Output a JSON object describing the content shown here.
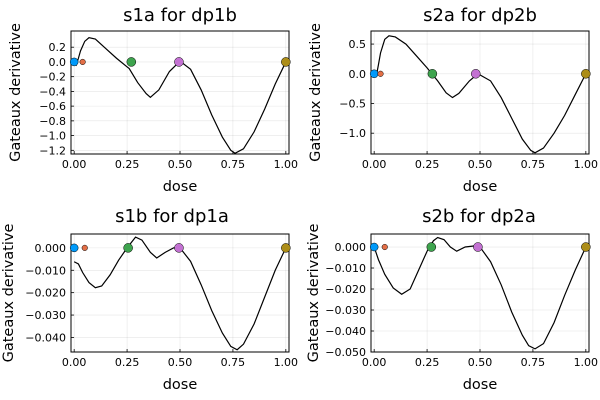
{
  "chart_data": [
    {
      "type": "line",
      "title": "s1a for dp1b",
      "xlabel": "dose",
      "ylabel": "Gateaux derivative",
      "xlim": [
        -0.015,
        1.015
      ],
      "ylim": [
        -1.25,
        0.42
      ],
      "xticks": [
        0.0,
        0.25,
        0.5,
        0.75,
        1.0
      ],
      "xtick_labels": [
        "0.00",
        "0.25",
        "0.50",
        "0.75",
        "1.00"
      ],
      "yticks": [
        0.2,
        0.0,
        -0.2,
        -0.4,
        -0.6,
        -0.8,
        -1.0,
        -1.2
      ],
      "ytick_labels": [
        "0.2",
        "0.0",
        "−0.2",
        "−0.4",
        "−0.6",
        "−0.8",
        "−1.0",
        "−1.2"
      ],
      "grid": true,
      "legend": "none",
      "series": [
        {
          "values": [
            [
              0.0,
              0.0
            ],
            [
              0.01,
              -0.04
            ],
            [
              0.02,
              0.05
            ],
            [
              0.03,
              0.15
            ],
            [
              0.05,
              0.28
            ],
            [
              0.07,
              0.33
            ],
            [
              0.1,
              0.31
            ],
            [
              0.15,
              0.18
            ],
            [
              0.2,
              0.05
            ],
            [
              0.26,
              -0.09
            ],
            [
              0.3,
              -0.28
            ],
            [
              0.34,
              -0.43
            ],
            [
              0.36,
              -0.48
            ],
            [
              0.4,
              -0.38
            ],
            [
              0.45,
              -0.13
            ],
            [
              0.5,
              0.01
            ],
            [
              0.55,
              -0.1
            ],
            [
              0.6,
              -0.38
            ],
            [
              0.65,
              -0.72
            ],
            [
              0.7,
              -1.02
            ],
            [
              0.74,
              -1.2
            ],
            [
              0.76,
              -1.24
            ],
            [
              0.8,
              -1.18
            ],
            [
              0.85,
              -0.95
            ],
            [
              0.9,
              -0.64
            ],
            [
              0.95,
              -0.3
            ],
            [
              1.0,
              0.0
            ]
          ]
        }
      ],
      "points": [
        {
          "x": 0.0,
          "y": 0.0,
          "color": "#009AFA",
          "r": 4
        },
        {
          "x": 0.04,
          "y": 0.0,
          "color": "#E36F47",
          "r": 2.8
        },
        {
          "x": 0.27,
          "y": 0.0,
          "color": "#3EA44E",
          "r": 4.5
        },
        {
          "x": 0.495,
          "y": 0.0,
          "color": "#C371D2",
          "r": 4.5
        },
        {
          "x": 1.0,
          "y": 0.0,
          "color": "#AC8D18",
          "r": 4.5
        }
      ]
    },
    {
      "type": "line",
      "title": "s2a for dp2b",
      "xlabel": "dose",
      "ylabel": "Gateaux derivative",
      "xlim": [
        -0.015,
        1.015
      ],
      "ylim": [
        -1.35,
        0.72
      ],
      "xticks": [
        0.0,
        0.25,
        0.5,
        0.75,
        1.0
      ],
      "xtick_labels": [
        "0.00",
        "0.25",
        "0.50",
        "0.75",
        "1.00"
      ],
      "yticks": [
        0.5,
        0.0,
        -0.5,
        -1.0
      ],
      "ytick_labels": [
        "0.5",
        "0.0",
        "−0.5",
        "−1.0"
      ],
      "grid": true,
      "legend": "none",
      "series": [
        {
          "values": [
            [
              0.0,
              0.0
            ],
            [
              0.01,
              -0.04
            ],
            [
              0.02,
              0.15
            ],
            [
              0.03,
              0.35
            ],
            [
              0.05,
              0.58
            ],
            [
              0.07,
              0.64
            ],
            [
              0.1,
              0.62
            ],
            [
              0.15,
              0.5
            ],
            [
              0.2,
              0.3
            ],
            [
              0.25,
              0.1
            ],
            [
              0.3,
              -0.12
            ],
            [
              0.34,
              -0.32
            ],
            [
              0.37,
              -0.4
            ],
            [
              0.4,
              -0.33
            ],
            [
              0.45,
              -0.12
            ],
            [
              0.49,
              0.0
            ],
            [
              0.55,
              -0.12
            ],
            [
              0.6,
              -0.4
            ],
            [
              0.65,
              -0.75
            ],
            [
              0.7,
              -1.1
            ],
            [
              0.74,
              -1.29
            ],
            [
              0.76,
              -1.33
            ],
            [
              0.8,
              -1.25
            ],
            [
              0.85,
              -1.0
            ],
            [
              0.9,
              -0.7
            ],
            [
              0.95,
              -0.35
            ],
            [
              1.0,
              0.0
            ]
          ]
        }
      ],
      "points": [
        {
          "x": 0.0,
          "y": 0.0,
          "color": "#009AFA",
          "r": 4
        },
        {
          "x": 0.03,
          "y": 0.0,
          "color": "#E36F47",
          "r": 2.8
        },
        {
          "x": 0.275,
          "y": 0.0,
          "color": "#3EA44E",
          "r": 4.5
        },
        {
          "x": 0.48,
          "y": 0.0,
          "color": "#C371D2",
          "r": 4.5
        },
        {
          "x": 1.0,
          "y": 0.0,
          "color": "#AC8D18",
          "r": 4.5
        }
      ]
    },
    {
      "type": "line",
      "title": "s1b for dp1a",
      "xlabel": "dose",
      "ylabel": "Gateaux derivative",
      "xlim": [
        -0.015,
        1.015
      ],
      "ylim": [
        -0.0465,
        0.0062
      ],
      "xticks": [
        0.0,
        0.25,
        0.5,
        0.75,
        1.0
      ],
      "xtick_labels": [
        "0.00",
        "0.25",
        "0.50",
        "0.75",
        "1.00"
      ],
      "yticks": [
        0.0,
        -0.01,
        -0.02,
        -0.03,
        -0.04
      ],
      "ytick_labels": [
        "0.000",
        "−0.010",
        "−0.020",
        "−0.030",
        "−0.040"
      ],
      "grid": true,
      "legend": "none",
      "series": [
        {
          "values": [
            [
              0.0,
              -0.0062
            ],
            [
              0.02,
              -0.0072
            ],
            [
              0.04,
              -0.011
            ],
            [
              0.07,
              -0.0155
            ],
            [
              0.1,
              -0.0178
            ],
            [
              0.13,
              -0.017
            ],
            [
              0.17,
              -0.012
            ],
            [
              0.21,
              -0.0055
            ],
            [
              0.25,
              0.0
            ],
            [
              0.29,
              0.0048
            ],
            [
              0.32,
              0.0035
            ],
            [
              0.36,
              -0.002
            ],
            [
              0.39,
              -0.0045
            ],
            [
              0.43,
              -0.002
            ],
            [
              0.47,
              0.0
            ],
            [
              0.5,
              0.0
            ],
            [
              0.55,
              -0.006
            ],
            [
              0.6,
              -0.0165
            ],
            [
              0.65,
              -0.028
            ],
            [
              0.7,
              -0.038
            ],
            [
              0.74,
              -0.044
            ],
            [
              0.77,
              -0.0455
            ],
            [
              0.8,
              -0.043
            ],
            [
              0.85,
              -0.034
            ],
            [
              0.9,
              -0.022
            ],
            [
              0.95,
              -0.01
            ],
            [
              1.0,
              0.0
            ]
          ]
        }
      ],
      "points": [
        {
          "x": 0.0,
          "y": 0.0,
          "color": "#009AFA",
          "r": 4
        },
        {
          "x": 0.05,
          "y": 0.0,
          "color": "#E36F47",
          "r": 2.8
        },
        {
          "x": 0.255,
          "y": 0.0,
          "color": "#3EA44E",
          "r": 4.5
        },
        {
          "x": 0.495,
          "y": 0.0,
          "color": "#C371D2",
          "r": 4.5
        },
        {
          "x": 1.0,
          "y": 0.0,
          "color": "#AC8D18",
          "r": 4.5
        }
      ]
    },
    {
      "type": "line",
      "title": "s2b for dp2a",
      "xlabel": "dose",
      "ylabel": "Gateaux derivative",
      "xlim": [
        -0.015,
        1.015
      ],
      "ylim": [
        -0.05,
        0.0062
      ],
      "xticks": [
        0.0,
        0.25,
        0.5,
        0.75,
        1.0
      ],
      "xtick_labels": [
        "0.00",
        "0.25",
        "0.50",
        "0.75",
        "1.00"
      ],
      "yticks": [
        0.0,
        -0.01,
        -0.02,
        -0.03,
        -0.04,
        -0.05
      ],
      "ytick_labels": [
        "0.000",
        "−0.010",
        "−0.020",
        "−0.030",
        "−0.040",
        "−0.050"
      ],
      "grid": true,
      "legend": "none",
      "series": [
        {
          "values": [
            [
              0.0,
              0.0
            ],
            [
              0.02,
              -0.006
            ],
            [
              0.05,
              -0.013
            ],
            [
              0.09,
              -0.0195
            ],
            [
              0.13,
              -0.0225
            ],
            [
              0.17,
              -0.02
            ],
            [
              0.21,
              -0.011
            ],
            [
              0.25,
              -0.002
            ],
            [
              0.28,
              0.003
            ],
            [
              0.3,
              0.0045
            ],
            [
              0.33,
              0.0035
            ],
            [
              0.36,
              0.0
            ],
            [
              0.39,
              -0.002
            ],
            [
              0.43,
              0.0
            ],
            [
              0.47,
              0.0005
            ],
            [
              0.5,
              0.0
            ],
            [
              0.55,
              -0.007
            ],
            [
              0.6,
              -0.018
            ],
            [
              0.65,
              -0.031
            ],
            [
              0.7,
              -0.042
            ],
            [
              0.73,
              -0.047
            ],
            [
              0.76,
              -0.0485
            ],
            [
              0.8,
              -0.046
            ],
            [
              0.85,
              -0.036
            ],
            [
              0.9,
              -0.023
            ],
            [
              0.95,
              -0.011
            ],
            [
              1.0,
              0.0
            ]
          ]
        }
      ],
      "points": [
        {
          "x": 0.0,
          "y": 0.0,
          "color": "#009AFA",
          "r": 4
        },
        {
          "x": 0.05,
          "y": 0.0,
          "color": "#E36F47",
          "r": 2.8
        },
        {
          "x": 0.27,
          "y": 0.0,
          "color": "#3EA44E",
          "r": 4.5
        },
        {
          "x": 0.49,
          "y": 0.0,
          "color": "#C371D2",
          "r": 4.5
        },
        {
          "x": 1.0,
          "y": 0.0,
          "color": "#AC8D18",
          "r": 4.5
        }
      ]
    }
  ]
}
